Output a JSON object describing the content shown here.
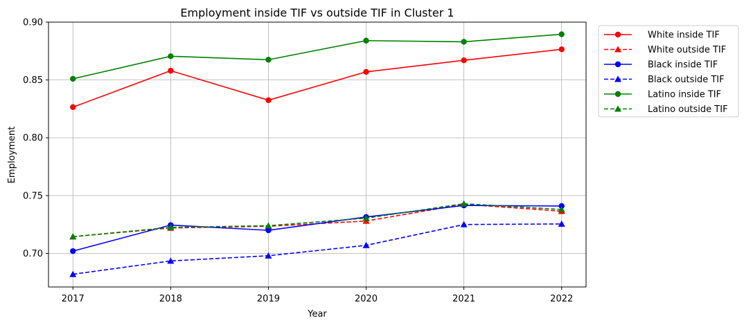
{
  "chart_data": {
    "type": "line",
    "title": "Employment inside TIF vs outside TIF in Cluster 1",
    "xlabel": "Year",
    "ylabel": "Employment",
    "x": [
      2017,
      2018,
      2019,
      2020,
      2021,
      2022
    ],
    "x_tick_labels": [
      "2017",
      "2018",
      "2019",
      "2020",
      "2021",
      "2022"
    ],
    "xlim": [
      2016.75,
      2022.25
    ],
    "ylim": [
      0.671,
      0.9
    ],
    "y_ticks": [
      0.7,
      0.75,
      0.8,
      0.85,
      0.9
    ],
    "y_tick_labels": [
      "0.70",
      "0.75",
      "0.80",
      "0.85",
      "0.90"
    ],
    "grid": true,
    "legend_position": "outside-top-right",
    "series": [
      {
        "name": "White inside TIF",
        "color": "#ff0000",
        "linestyle": "solid",
        "marker": "circle",
        "values": [
          0.8265,
          0.858,
          0.8325,
          0.857,
          0.867,
          0.8765
        ]
      },
      {
        "name": "White outside TIF",
        "color": "#ff0000",
        "linestyle": "dashed",
        "marker": "triangle",
        "values": [
          0.7145,
          0.722,
          0.7235,
          0.728,
          0.7425,
          0.7365
        ]
      },
      {
        "name": "Black inside TIF",
        "color": "#0000ff",
        "linestyle": "solid",
        "marker": "circle",
        "values": [
          0.702,
          0.7245,
          0.72,
          0.7315,
          0.7415,
          0.741
        ]
      },
      {
        "name": "Black outside TIF",
        "color": "#0000ff",
        "linestyle": "dashed",
        "marker": "triangle",
        "values": [
          0.682,
          0.6935,
          0.698,
          0.707,
          0.725,
          0.7255
        ]
      },
      {
        "name": "Latino inside TIF",
        "color": "#008000",
        "linestyle": "solid",
        "marker": "circle",
        "values": [
          0.851,
          0.8705,
          0.8675,
          0.884,
          0.883,
          0.8895
        ]
      },
      {
        "name": "Latino outside TIF",
        "color": "#008000",
        "linestyle": "dashed",
        "marker": "triangle",
        "values": [
          0.7145,
          0.7225,
          0.724,
          0.7305,
          0.743,
          0.738
        ]
      }
    ]
  }
}
